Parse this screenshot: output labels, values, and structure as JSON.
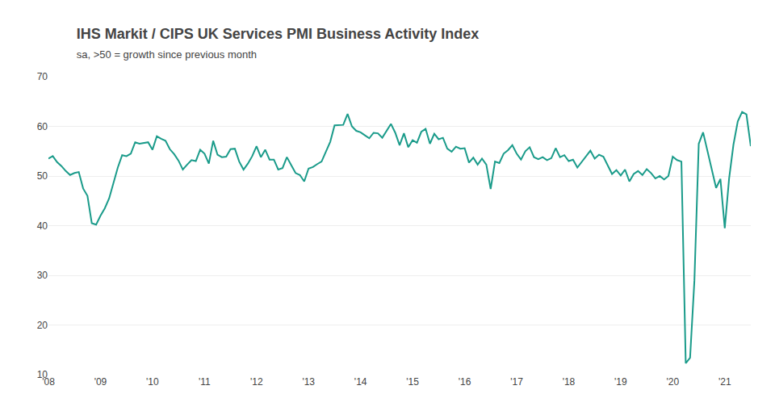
{
  "chart_data": {
    "type": "line",
    "title": "IHS Markit / CIPS UK Services PMI Business Activity Index",
    "subtitle": "sa, >50 = growth since previous month",
    "categories": [
      "'08",
      null,
      null,
      null,
      null,
      null,
      null,
      null,
      null,
      null,
      null,
      null,
      "'09",
      null,
      null,
      null,
      null,
      null,
      null,
      null,
      null,
      null,
      null,
      null,
      "'10",
      null,
      null,
      null,
      null,
      null,
      null,
      null,
      null,
      null,
      null,
      null,
      "'11",
      null,
      null,
      null,
      null,
      null,
      null,
      null,
      null,
      null,
      null,
      null,
      "'12",
      null,
      null,
      null,
      null,
      null,
      null,
      null,
      null,
      null,
      null,
      null,
      "'13",
      null,
      null,
      null,
      null,
      null,
      null,
      null,
      null,
      null,
      null,
      null,
      "'14",
      null,
      null,
      null,
      null,
      null,
      null,
      null,
      null,
      null,
      null,
      null,
      "'15",
      null,
      null,
      null,
      null,
      null,
      null,
      null,
      null,
      null,
      null,
      null,
      "'16",
      null,
      null,
      null,
      null,
      null,
      null,
      null,
      null,
      null,
      null,
      null,
      "'17",
      null,
      null,
      null,
      null,
      null,
      null,
      null,
      null,
      null,
      null,
      null,
      "'18",
      null,
      null,
      null,
      null,
      null,
      null,
      null,
      null,
      null,
      null,
      null,
      "'19",
      null,
      null,
      null,
      null,
      null,
      null,
      null,
      null,
      null,
      null,
      null,
      "'20",
      null,
      null,
      null,
      null,
      null,
      null,
      null,
      null,
      null,
      null,
      null,
      "'21",
      null,
      null,
      null,
      null,
      null,
      null
    ],
    "values": [
      53.5,
      54.0,
      52.8,
      52.0,
      51.0,
      50.2,
      50.6,
      50.8,
      47.5,
      46.0,
      40.5,
      40.2,
      42.0,
      43.5,
      45.5,
      48.5,
      51.7,
      54.2,
      54.0,
      54.5,
      56.8,
      56.5,
      56.6,
      56.8,
      55.3,
      58.0,
      57.5,
      57.1,
      55.4,
      54.4,
      53.1,
      51.3,
      52.3,
      53.2,
      53.0,
      55.3,
      54.5,
      52.5,
      57.1,
      54.3,
      53.8,
      53.9,
      55.4,
      55.5,
      52.9,
      51.3,
      52.5,
      54.0,
      56.0,
      53.8,
      55.3,
      53.3,
      53.3,
      51.3,
      51.6,
      53.8,
      52.2,
      50.6,
      50.2,
      48.9,
      51.5,
      51.8,
      52.4,
      52.9,
      54.9,
      56.9,
      60.2,
      60.2,
      60.3,
      62.5,
      60.0,
      59.1,
      58.8,
      58.2,
      57.6,
      58.7,
      58.6,
      57.7,
      59.1,
      60.5,
      58.7,
      56.2,
      58.6,
      55.8,
      57.2,
      56.7,
      58.9,
      59.5,
      56.5,
      58.5,
      57.4,
      57.7,
      55.5,
      54.9,
      55.9,
      55.5,
      55.6,
      52.7,
      53.7,
      52.3,
      53.5,
      52.3,
      47.4,
      52.9,
      52.6,
      54.5,
      55.2,
      56.2,
      54.5,
      53.3,
      55.0,
      55.8,
      53.8,
      53.4,
      53.8,
      53.2,
      53.6,
      55.6,
      53.8,
      54.2,
      53.0,
      53.3,
      51.7,
      52.8,
      54.0,
      55.1,
      53.5,
      54.3,
      53.9,
      52.2,
      50.4,
      51.2,
      50.1,
      51.3,
      48.9,
      50.4,
      51.0,
      50.2,
      51.4,
      50.6,
      49.5,
      50.0,
      49.3,
      50.0,
      53.9,
      53.2,
      52.9,
      12.3,
      13.4,
      29.0,
      56.5,
      58.8,
      55.1,
      51.4,
      47.6,
      49.4,
      39.5,
      49.5,
      56.3,
      61.0,
      62.9,
      62.4,
      56.0
    ],
    "color": "#1a9b8a",
    "ylim": [
      10,
      70
    ],
    "yticks": [
      10,
      20,
      30,
      40,
      50,
      60,
      70
    ],
    "grid": true
  }
}
